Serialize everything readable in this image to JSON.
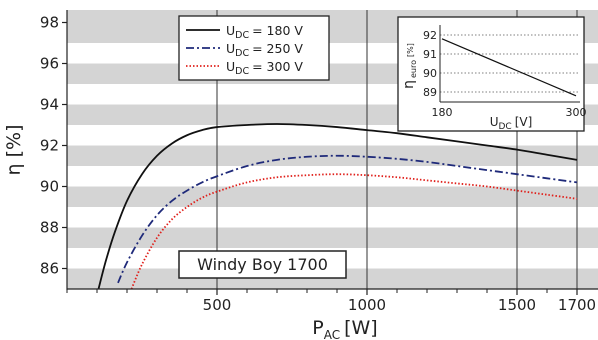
{
  "chart_data": {
    "type": "line",
    "xlabel": "P",
    "xlabel_sub": "AC",
    "xlabel_unit": "[W]",
    "ylabel": "η [%]",
    "xlim": [
      0,
      1700
    ],
    "ylim": [
      85,
      99
    ],
    "x_ticks": [
      500,
      1000,
      1500,
      1700
    ],
    "y_ticks": [
      86,
      88,
      90,
      92,
      94,
      96,
      98
    ],
    "grid": "vertical lines at x ticks, alternating gray horizontal bands",
    "legend_position": "top-left",
    "series": [
      {
        "name": "U",
        "name_sub": "DC",
        "name_value": "= 180 V",
        "color": "#111111",
        "dash": "solid",
        "x": [
          105,
          130,
          160,
          200,
          250,
          300,
          350,
          400,
          450,
          500,
          600,
          700,
          800,
          900,
          1000,
          1100,
          1200,
          1300,
          1400,
          1500,
          1600,
          1700
        ],
        "y": [
          85.0,
          86.4,
          87.8,
          89.3,
          90.6,
          91.5,
          92.1,
          92.5,
          92.75,
          92.9,
          93.0,
          93.05,
          93.0,
          92.9,
          92.75,
          92.6,
          92.4,
          92.2,
          92.0,
          91.8,
          91.55,
          91.3
        ]
      },
      {
        "name": "U",
        "name_sub": "DC",
        "name_value": "= 250 V",
        "color": "#1f2a7a",
        "dash": "dash-dot",
        "x": [
          170,
          200,
          250,
          300,
          350,
          400,
          450,
          500,
          600,
          700,
          800,
          900,
          1000,
          1100,
          1200,
          1300,
          1400,
          1500,
          1600,
          1700
        ],
        "y": [
          85.3,
          86.3,
          87.6,
          88.6,
          89.3,
          89.8,
          90.2,
          90.5,
          91.0,
          91.3,
          91.45,
          91.5,
          91.45,
          91.35,
          91.2,
          91.0,
          90.8,
          90.6,
          90.4,
          90.2
        ]
      },
      {
        "name": "U",
        "name_sub": "DC",
        "name_value": "= 300 V",
        "color": "#e0201b",
        "dash": "dotted",
        "x": [
          215,
          250,
          300,
          350,
          400,
          450,
          500,
          600,
          700,
          800,
          900,
          1000,
          1100,
          1200,
          1300,
          1400,
          1500,
          1600,
          1700
        ],
        "y": [
          85.0,
          86.2,
          87.5,
          88.4,
          89.0,
          89.45,
          89.75,
          90.2,
          90.45,
          90.55,
          90.6,
          90.55,
          90.45,
          90.3,
          90.15,
          90.0,
          89.8,
          89.6,
          89.4
        ]
      }
    ],
    "annotation": "Windy Boy 1700",
    "inset": {
      "type": "line",
      "xlabel": "U",
      "xlabel_sub": "DC",
      "xlabel_unit": "[V]",
      "ylabel": "η",
      "ylabel_sub": "euro",
      "ylabel_unit": "[%]",
      "xlim": [
        180,
        300
      ],
      "ylim": [
        88.5,
        92.5
      ],
      "x_ticks": [
        180,
        300
      ],
      "y_ticks": [
        89,
        90,
        91,
        92
      ],
      "grid": "dotted horizontal",
      "x": [
        180,
        300
      ],
      "y": [
        91.8,
        88.8
      ],
      "color": "#111111"
    }
  }
}
